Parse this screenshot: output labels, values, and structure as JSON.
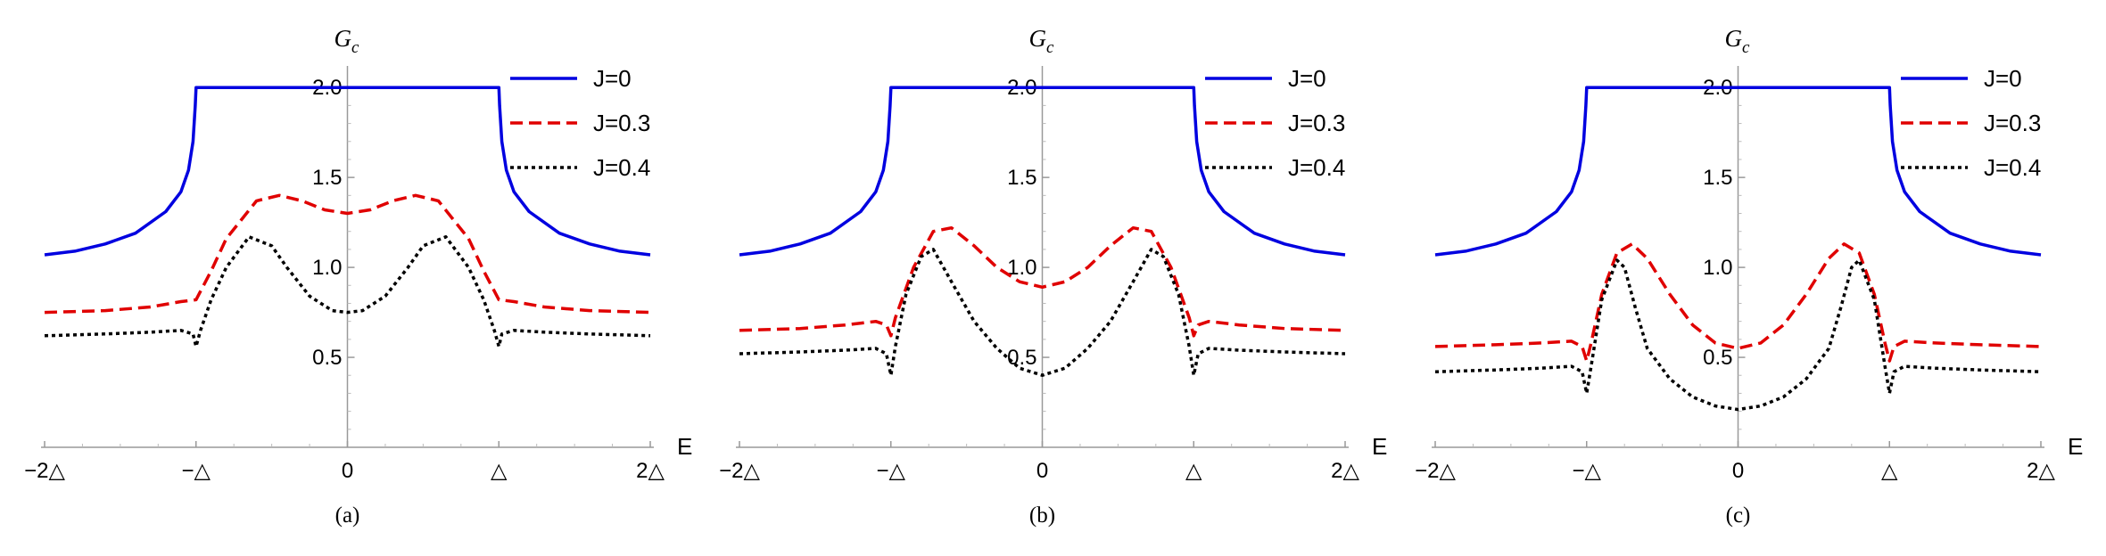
{
  "chart_data": [
    {
      "type": "line",
      "caption": "(a)",
      "ylabel_main": "G",
      "ylabel_sub": "c",
      "xlabel": "E",
      "xticks": [
        "−2△",
        "−△",
        "0",
        "△",
        "2△"
      ],
      "xtick_values": [
        -2,
        -1,
        0,
        1,
        2
      ],
      "yticks": [
        "0.5",
        "1.0",
        "1.5",
        "2.0"
      ],
      "ytick_values": [
        0.5,
        1.0,
        1.5,
        2.0
      ],
      "xlim": [
        -2,
        2
      ],
      "ylim": [
        0,
        2.1
      ],
      "legend_position": "top-right",
      "series": [
        {
          "name": "J=0",
          "color": "#0000e0",
          "style": "solid",
          "x": [
            -2,
            -1.8,
            -1.6,
            -1.4,
            -1.2,
            -1.1,
            -1.05,
            -1.02,
            -1.005,
            -1.0,
            -0.5,
            0,
            0.5,
            1.0,
            1.005,
            1.02,
            1.05,
            1.1,
            1.2,
            1.4,
            1.6,
            1.8,
            2
          ],
          "y": [
            1.07,
            1.09,
            1.13,
            1.19,
            1.31,
            1.42,
            1.54,
            1.7,
            1.9,
            2.0,
            2.0,
            2.0,
            2.0,
            2.0,
            1.9,
            1.7,
            1.54,
            1.42,
            1.31,
            1.19,
            1.13,
            1.09,
            1.07
          ]
        },
        {
          "name": "J=0.3",
          "color": "#e00000",
          "style": "dashed",
          "x": [
            -2,
            -1.6,
            -1.3,
            -1.1,
            -1.0,
            -0.9,
            -0.8,
            -0.6,
            -0.45,
            -0.3,
            -0.15,
            0,
            0.15,
            0.3,
            0.45,
            0.6,
            0.8,
            0.9,
            1.0,
            1.1,
            1.3,
            1.6,
            2
          ],
          "y": [
            0.75,
            0.76,
            0.78,
            0.81,
            0.82,
            0.98,
            1.16,
            1.37,
            1.4,
            1.37,
            1.32,
            1.3,
            1.32,
            1.37,
            1.4,
            1.37,
            1.16,
            0.98,
            0.82,
            0.81,
            0.78,
            0.76,
            0.75
          ]
        },
        {
          "name": "J=0.4",
          "color": "#000000",
          "style": "dotted",
          "x": [
            -2,
            -1.6,
            -1.3,
            -1.1,
            -1.02,
            -1.0,
            -0.97,
            -0.9,
            -0.8,
            -0.65,
            -0.5,
            -0.4,
            -0.25,
            -0.1,
            0,
            0.1,
            0.25,
            0.4,
            0.5,
            0.65,
            0.8,
            0.9,
            0.97,
            1.0,
            1.02,
            1.1,
            1.3,
            1.6,
            2
          ],
          "y": [
            0.62,
            0.63,
            0.64,
            0.65,
            0.63,
            0.56,
            0.65,
            0.82,
            1.0,
            1.17,
            1.12,
            1.0,
            0.84,
            0.76,
            0.75,
            0.76,
            0.84,
            1.0,
            1.12,
            1.17,
            1.0,
            0.82,
            0.65,
            0.56,
            0.63,
            0.65,
            0.64,
            0.63,
            0.62
          ]
        }
      ]
    },
    {
      "type": "line",
      "caption": "(b)",
      "ylabel_main": "G",
      "ylabel_sub": "c",
      "xlabel": "E",
      "xticks": [
        "−2△",
        "−△",
        "0",
        "△",
        "2△"
      ],
      "xtick_values": [
        -2,
        -1,
        0,
        1,
        2
      ],
      "yticks": [
        "0.5",
        "1.0",
        "1.5",
        "2.0"
      ],
      "ytick_values": [
        0.5,
        1.0,
        1.5,
        2.0
      ],
      "xlim": [
        -2,
        2
      ],
      "ylim": [
        0,
        2.1
      ],
      "legend_position": "top-right",
      "series": [
        {
          "name": "J=0",
          "color": "#0000e0",
          "style": "solid",
          "x": [
            -2,
            -1.8,
            -1.6,
            -1.4,
            -1.2,
            -1.1,
            -1.05,
            -1.02,
            -1.005,
            -1.0,
            -0.5,
            0,
            0.5,
            1.0,
            1.005,
            1.02,
            1.05,
            1.1,
            1.2,
            1.4,
            1.6,
            1.8,
            2
          ],
          "y": [
            1.07,
            1.09,
            1.13,
            1.19,
            1.31,
            1.42,
            1.54,
            1.7,
            1.9,
            2.0,
            2.0,
            2.0,
            2.0,
            2.0,
            1.9,
            1.7,
            1.54,
            1.42,
            1.31,
            1.19,
            1.13,
            1.09,
            1.07
          ]
        },
        {
          "name": "J=0.3",
          "color": "#e00000",
          "style": "dashed",
          "x": [
            -2,
            -1.6,
            -1.3,
            -1.1,
            -1.03,
            -1.0,
            -0.97,
            -0.85,
            -0.72,
            -0.6,
            -0.45,
            -0.3,
            -0.15,
            0,
            0.15,
            0.3,
            0.45,
            0.6,
            0.72,
            0.85,
            0.97,
            1.0,
            1.03,
            1.1,
            1.3,
            1.6,
            2
          ],
          "y": [
            0.65,
            0.66,
            0.68,
            0.7,
            0.68,
            0.62,
            0.72,
            1.0,
            1.2,
            1.22,
            1.12,
            1.0,
            0.92,
            0.89,
            0.92,
            1.0,
            1.12,
            1.22,
            1.2,
            1.0,
            0.72,
            0.62,
            0.68,
            0.7,
            0.68,
            0.66,
            0.65
          ]
        },
        {
          "name": "J=0.4",
          "color": "#000000",
          "style": "dotted",
          "x": [
            -2,
            -1.6,
            -1.3,
            -1.1,
            -1.03,
            -1.0,
            -0.97,
            -0.9,
            -0.8,
            -0.72,
            -0.6,
            -0.45,
            -0.3,
            -0.15,
            0,
            0.15,
            0.3,
            0.45,
            0.6,
            0.72,
            0.8,
            0.9,
            0.97,
            1.0,
            1.03,
            1.1,
            1.3,
            1.6,
            2
          ],
          "y": [
            0.52,
            0.53,
            0.54,
            0.55,
            0.52,
            0.4,
            0.56,
            0.85,
            1.06,
            1.1,
            0.92,
            0.7,
            0.55,
            0.44,
            0.4,
            0.44,
            0.55,
            0.7,
            0.92,
            1.1,
            1.06,
            0.85,
            0.56,
            0.4,
            0.52,
            0.55,
            0.54,
            0.53,
            0.52
          ]
        }
      ]
    },
    {
      "type": "line",
      "caption": "(c)",
      "ylabel_main": "G",
      "ylabel_sub": "c",
      "xlabel": "E",
      "xticks": [
        "−2△",
        "−△",
        "0",
        "△",
        "2△"
      ],
      "xtick_values": [
        -2,
        -1,
        0,
        1,
        2
      ],
      "yticks": [
        "0.5",
        "1.0",
        "1.5",
        "2.0"
      ],
      "ytick_values": [
        0.5,
        1.0,
        1.5,
        2.0
      ],
      "xlim": [
        -2,
        2
      ],
      "ylim": [
        0,
        2.1
      ],
      "legend_position": "top-right",
      "series": [
        {
          "name": "J=0",
          "color": "#0000e0",
          "style": "solid",
          "x": [
            -2,
            -1.8,
            -1.6,
            -1.4,
            -1.2,
            -1.1,
            -1.05,
            -1.02,
            -1.005,
            -1.0,
            -0.5,
            0,
            0.5,
            1.0,
            1.005,
            1.02,
            1.05,
            1.1,
            1.2,
            1.4,
            1.6,
            1.8,
            2
          ],
          "y": [
            1.07,
            1.09,
            1.13,
            1.19,
            1.31,
            1.42,
            1.54,
            1.7,
            1.9,
            2.0,
            2.0,
            2.0,
            2.0,
            2.0,
            1.9,
            1.7,
            1.54,
            1.42,
            1.31,
            1.19,
            1.13,
            1.09,
            1.07
          ]
        },
        {
          "name": "J=0.3",
          "color": "#e00000",
          "style": "dashed",
          "x": [
            -2,
            -1.6,
            -1.3,
            -1.1,
            -1.03,
            -1.0,
            -0.97,
            -0.9,
            -0.8,
            -0.7,
            -0.6,
            -0.45,
            -0.3,
            -0.15,
            0,
            0.15,
            0.3,
            0.45,
            0.6,
            0.7,
            0.8,
            0.9,
            0.97,
            1.0,
            1.03,
            1.1,
            1.3,
            1.6,
            2
          ],
          "y": [
            0.56,
            0.57,
            0.58,
            0.59,
            0.56,
            0.48,
            0.58,
            0.85,
            1.08,
            1.13,
            1.05,
            0.85,
            0.68,
            0.58,
            0.55,
            0.58,
            0.68,
            0.85,
            1.05,
            1.13,
            1.08,
            0.85,
            0.58,
            0.48,
            0.56,
            0.59,
            0.58,
            0.57,
            0.56
          ]
        },
        {
          "name": "J=0.4",
          "color": "#000000",
          "style": "dotted",
          "x": [
            -2,
            -1.6,
            -1.3,
            -1.1,
            -1.03,
            -1.0,
            -0.97,
            -0.9,
            -0.8,
            -0.75,
            -0.68,
            -0.6,
            -0.45,
            -0.3,
            -0.15,
            0,
            0.15,
            0.3,
            0.45,
            0.6,
            0.68,
            0.75,
            0.8,
            0.9,
            0.97,
            1.0,
            1.03,
            1.1,
            1.3,
            1.6,
            2
          ],
          "y": [
            0.42,
            0.43,
            0.44,
            0.45,
            0.42,
            0.3,
            0.45,
            0.82,
            1.04,
            1.0,
            0.78,
            0.55,
            0.38,
            0.28,
            0.23,
            0.21,
            0.23,
            0.28,
            0.38,
            0.55,
            0.78,
            1.0,
            1.04,
            0.82,
            0.45,
            0.3,
            0.42,
            0.45,
            0.44,
            0.43,
            0.42
          ]
        }
      ]
    }
  ]
}
